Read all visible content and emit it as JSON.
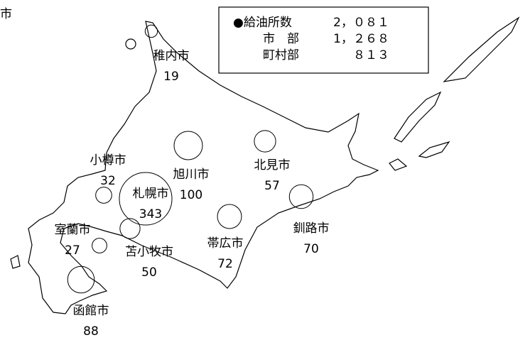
{
  "title": "市",
  "summary": {
    "rows": [
      {
        "label": "●給油所数",
        "value": "2，０８１"
      },
      {
        "label": "市　部",
        "value": "1，２６８"
      },
      {
        "label": "町村部",
        "value": "８１３"
      }
    ]
  },
  "cities": [
    {
      "name": "稚内市",
      "count": 19
    },
    {
      "name": "小樽市",
      "count": 32
    },
    {
      "name": "札幌市",
      "count": 343
    },
    {
      "name": "旭川市",
      "count": 100
    },
    {
      "name": "北見市",
      "count": 57
    },
    {
      "name": "室蘭市",
      "count": 27
    },
    {
      "name": "苫小牧市",
      "count": 50
    },
    {
      "name": "帯広市",
      "count": 72
    },
    {
      "name": "釧路市",
      "count": 70
    },
    {
      "name": "函館市",
      "count": 88
    }
  ]
}
